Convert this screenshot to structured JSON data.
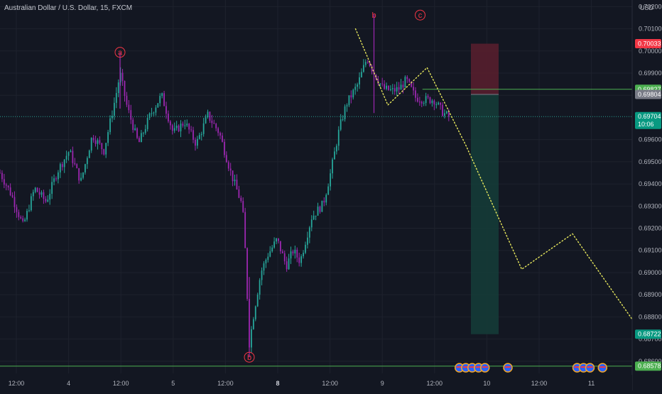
{
  "header": {
    "symbol_name": "Australian Dollar / U.S. Dollar",
    "interval": "15",
    "source": "FXCM",
    "currency": "USD"
  },
  "colors": {
    "background": "#131722",
    "grid": "#1e222d",
    "bull": "#26a69a",
    "bear": "#9c27b0",
    "projection": "#e8e85c",
    "wave_label": "#f23645",
    "horizontal_line": "#4caf50",
    "stop_zone": "#5b1f2e",
    "target_zone": "#153b37",
    "current_price_bg": "#089981"
  },
  "chart_data": {
    "type": "candlestick",
    "symbol": "AUDUSD",
    "timeframe": "15",
    "x_axis": {
      "tick_labels": [
        "12:00",
        "4",
        "12:00",
        "5",
        "12:00",
        "8",
        "12:00",
        "9",
        "12:00",
        "10",
        "12:00",
        "11"
      ],
      "bold_labels": [
        "8"
      ]
    },
    "y_axis": {
      "tick_labels": [
        "0.70200",
        "0.70100",
        "0.70000",
        "0.69900",
        "0.69800",
        "0.69600",
        "0.69500",
        "0.69400",
        "0.69300",
        "0.69200",
        "0.69100",
        "0.69000",
        "0.68900",
        "0.68800",
        "0.68700",
        "0.68600"
      ],
      "range": [
        0.68545,
        0.7023
      ]
    },
    "price_path": [
      [
        0,
        0.6945
      ],
      [
        0.5,
        0.6935
      ],
      [
        1,
        0.6921
      ],
      [
        1.5,
        0.6938
      ],
      [
        2,
        0.6932
      ],
      [
        2.5,
        0.6946
      ],
      [
        3,
        0.6955
      ],
      [
        3.5,
        0.6941
      ],
      [
        4,
        0.6962
      ],
      [
        4.5,
        0.6955
      ],
      [
        5,
        0.6979
      ],
      [
        5.2,
        0.699
      ],
      [
        5.5,
        0.6975
      ],
      [
        6,
        0.6958
      ],
      [
        6.5,
        0.6971
      ],
      [
        7,
        0.698
      ],
      [
        7.5,
        0.6963
      ],
      [
        8,
        0.6968
      ],
      [
        8.5,
        0.6958
      ],
      [
        9,
        0.6971
      ],
      [
        9.5,
        0.6963
      ],
      [
        10,
        0.6945
      ],
      [
        10.5,
        0.693
      ],
      [
        10.6,
        0.6915
      ],
      [
        10.8,
        0.6868
      ],
      [
        11,
        0.6882
      ],
      [
        11.3,
        0.69
      ],
      [
        11.6,
        0.6908
      ],
      [
        12,
        0.6915
      ],
      [
        12.4,
        0.6903
      ],
      [
        12.7,
        0.691
      ],
      [
        13,
        0.6905
      ],
      [
        13.5,
        0.6925
      ],
      [
        14,
        0.6931
      ],
      [
        14.3,
        0.6944
      ],
      [
        14.7,
        0.6965
      ],
      [
        15,
        0.6976
      ],
      [
        15.5,
        0.6985
      ],
      [
        15.9,
        0.6997
      ],
      [
        16.2,
        0.699
      ],
      [
        16.6,
        0.6983
      ],
      [
        17,
        0.6982
      ],
      [
        17.3,
        0.6983
      ],
      [
        17.6,
        0.6987
      ],
      [
        18,
        0.6979
      ],
      [
        18.4,
        0.6978
      ],
      [
        18.8,
        0.6978
      ],
      [
        19.2,
        0.6972
      ],
      [
        19.5,
        0.697
      ]
    ],
    "volatility_scale": 0.00045,
    "wave_labels": [
      {
        "label": "a",
        "style": "circled",
        "x": 5.2,
        "y": 0.69994
      },
      {
        "label": "b",
        "style": "circled",
        "x": 10.8,
        "y": 0.68618
      },
      {
        "label": "b",
        "style": "plain",
        "x": 16.2,
        "y": 0.70162
      },
      {
        "label": "c",
        "style": "circled",
        "x": 18.2,
        "y": 0.70162
      }
    ],
    "projection_path": [
      [
        15.4,
        0.701
      ],
      [
        16.8,
        0.69756
      ],
      [
        18.5,
        0.69925
      ],
      [
        20.2,
        0.6957
      ],
      [
        22.6,
        0.69015
      ],
      [
        24.8,
        0.69175
      ],
      [
        28.8,
        0.68578
      ]
    ],
    "horizontal_lines": [
      {
        "y": 0.69827,
        "x_from": 18.3
      },
      {
        "y": 0.69704,
        "x_from": 0,
        "dotted": true
      },
      {
        "y": 0.68578,
        "x_from": 0
      }
    ],
    "position_box": {
      "x_from": 20.4,
      "x_to": 21.6,
      "stop": 0.70033,
      "entry": 0.69804,
      "target": 0.68722
    },
    "price_labels": [
      {
        "value": "0.70033",
        "y": 0.70033,
        "color": "#f23645"
      },
      {
        "value": "0.69827",
        "y": 0.69827,
        "color": "#4caf50"
      },
      {
        "value": "0.69804",
        "y": 0.69804,
        "color": "#787b86"
      },
      {
        "value": "0.69704",
        "sub": "10:06",
        "y": 0.69704,
        "color": "#089981"
      },
      {
        "value": "0.68722",
        "y": 0.68722,
        "color": "#089981"
      },
      {
        "value": "0.68578",
        "y": 0.68578,
        "color": "#4caf50"
      }
    ],
    "event_icon_clusters": [
      {
        "x": 19.9,
        "count": 5
      },
      {
        "x": 22.0,
        "count": 1
      },
      {
        "x": 25.0,
        "count": 3
      },
      {
        "x": 26.1,
        "count": 1
      },
      {
        "x": 27.6,
        "count": 1
      }
    ]
  }
}
